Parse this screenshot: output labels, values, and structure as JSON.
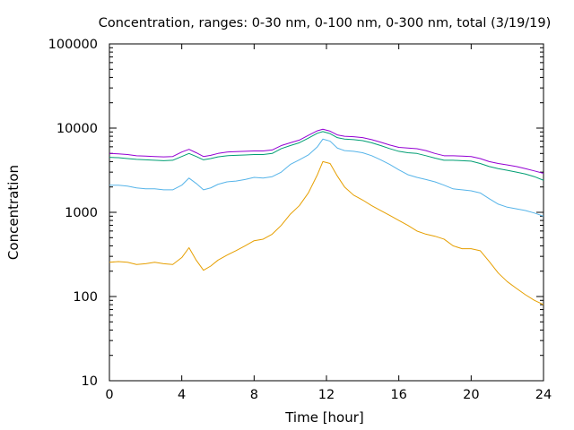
{
  "chart_data": {
    "type": "line",
    "title": "Concentration, ranges: 0-30 nm, 0-100 nm, 0-300 nm, total (3/19/19)",
    "xlabel": "Time [hour]",
    "ylabel": "Concentration",
    "xlim": [
      0,
      24
    ],
    "ylim": [
      10,
      100000
    ],
    "yscale": "log",
    "grid": false,
    "legend": "none",
    "x_ticks": [
      0,
      4,
      8,
      12,
      16,
      20,
      24
    ],
    "x_tick_labels": [
      "0",
      "4",
      "8",
      "12",
      "16",
      "20",
      "24"
    ],
    "y_ticks": [
      10,
      100,
      1000,
      10000,
      100000
    ],
    "y_tick_labels": [
      "10",
      "100",
      "1000",
      "10000",
      "100000"
    ],
    "x": [
      0,
      0.5,
      1,
      1.5,
      2,
      2.5,
      3,
      3.5,
      4,
      4.4,
      4.8,
      5.2,
      5.6,
      6,
      6.5,
      7,
      7.5,
      8,
      8.5,
      9,
      9.5,
      10,
      10.5,
      11,
      11.5,
      11.8,
      12.2,
      12.6,
      13,
      13.5,
      14,
      14.5,
      15,
      15.5,
      16,
      16.5,
      17,
      17.5,
      18,
      18.5,
      19,
      19.5,
      20,
      20.5,
      21,
      21.5,
      22,
      22.5,
      23,
      23.5,
      24
    ],
    "series": [
      {
        "color": "#9400d3",
        "values": [
          5000,
          4950,
          4850,
          4700,
          4650,
          4600,
          4550,
          4600,
          5200,
          5600,
          5100,
          4600,
          4750,
          5000,
          5200,
          5250,
          5300,
          5350,
          5350,
          5500,
          6200,
          6700,
          7200,
          8200,
          9300,
          9700,
          9200,
          8300,
          8000,
          7900,
          7700,
          7300,
          6800,
          6300,
          5900,
          5800,
          5700,
          5400,
          5000,
          4700,
          4700,
          4650,
          4600,
          4350,
          4000,
          3800,
          3650,
          3500,
          3300,
          3100,
          2900
        ]
      },
      {
        "color": "#009e73",
        "values": [
          4500,
          4450,
          4350,
          4250,
          4200,
          4150,
          4100,
          4150,
          4600,
          5000,
          4600,
          4200,
          4350,
          4550,
          4700,
          4750,
          4800,
          4850,
          4850,
          5000,
          5700,
          6200,
          6700,
          7600,
          8700,
          9100,
          8600,
          7700,
          7400,
          7300,
          7100,
          6700,
          6200,
          5700,
          5300,
          5100,
          5000,
          4700,
          4400,
          4150,
          4150,
          4100,
          4050,
          3800,
          3500,
          3300,
          3150,
          3000,
          2850,
          2650,
          2400
        ]
      },
      {
        "color": "#56b4e9",
        "values": [
          2100,
          2100,
          2050,
          1950,
          1900,
          1900,
          1850,
          1850,
          2100,
          2550,
          2200,
          1850,
          1950,
          2150,
          2300,
          2350,
          2450,
          2600,
          2550,
          2650,
          3000,
          3700,
          4200,
          4800,
          6000,
          7400,
          7000,
          5800,
          5400,
          5300,
          5100,
          4700,
          4200,
          3700,
          3200,
          2800,
          2600,
          2450,
          2300,
          2100,
          1900,
          1850,
          1800,
          1700,
          1450,
          1250,
          1150,
          1100,
          1050,
          980,
          900
        ]
      },
      {
        "color": "#e69f00",
        "values": [
          255,
          260,
          255,
          240,
          245,
          255,
          245,
          240,
          290,
          380,
          270,
          205,
          230,
          270,
          310,
          350,
          400,
          460,
          480,
          550,
          700,
          950,
          1200,
          1700,
          2800,
          4000,
          3800,
          2700,
          2000,
          1600,
          1400,
          1200,
          1050,
          920,
          800,
          700,
          600,
          550,
          520,
          480,
          400,
          370,
          370,
          350,
          260,
          190,
          150,
          125,
          105,
          90,
          80
        ]
      }
    ]
  }
}
